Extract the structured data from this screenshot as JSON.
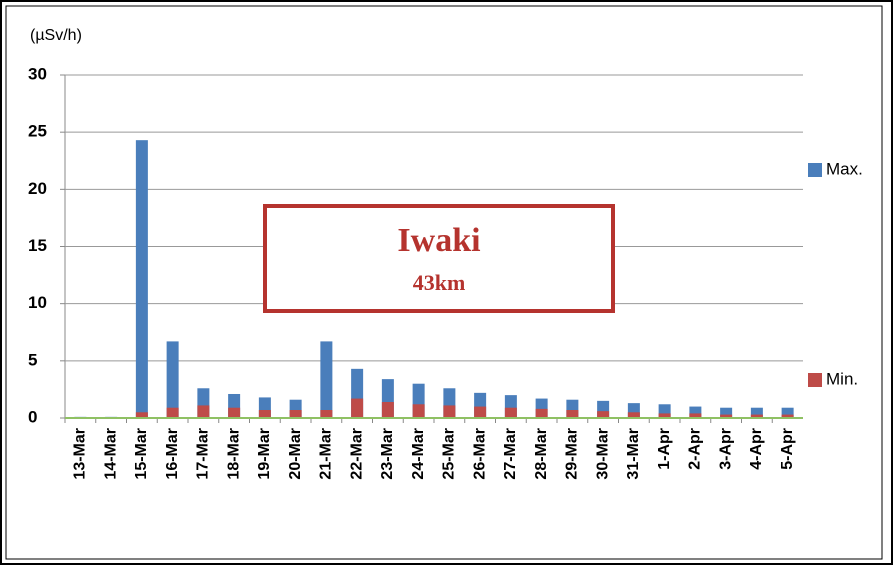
{
  "chart_data": {
    "type": "bar",
    "y_label": "(µSv/h)",
    "annotations": [
      "Iwaki",
      "43km"
    ],
    "categories": [
      "13-Mar",
      "14-Mar",
      "15-Mar",
      "16-Mar",
      "17-Mar",
      "18-Mar",
      "19-Mar",
      "20-Mar",
      "21-Mar",
      "22-Mar",
      "23-Mar",
      "24-Mar",
      "25-Mar",
      "26-Mar",
      "27-Mar",
      "28-Mar",
      "29-Mar",
      "30-Mar",
      "31-Mar",
      "1-Apr",
      "2-Apr",
      "3-Apr",
      "4-Apr",
      "5-Apr"
    ],
    "series": [
      {
        "name": "Max.",
        "color": "#4a7ebb",
        "values": [
          0.1,
          0.1,
          24.3,
          6.7,
          2.6,
          2.1,
          1.8,
          1.6,
          6.7,
          4.3,
          3.4,
          3.0,
          2.6,
          2.2,
          2.0,
          1.7,
          1.6,
          1.5,
          1.3,
          1.2,
          1.0,
          0.9,
          0.9,
          0.9
        ]
      },
      {
        "name": "Min.",
        "color": "#be4b48",
        "values": [
          0.05,
          0.05,
          0.5,
          0.9,
          1.1,
          0.9,
          0.7,
          0.7,
          0.7,
          1.7,
          1.4,
          1.2,
          1.1,
          1.0,
          0.9,
          0.8,
          0.7,
          0.6,
          0.5,
          0.4,
          0.4,
          0.3,
          0.3,
          0.3
        ]
      }
    ],
    "ylim": [
      0,
      30
    ],
    "yticks": [
      0,
      5,
      10,
      15,
      20,
      25,
      30
    ],
    "grid": true,
    "legend": "right"
  }
}
